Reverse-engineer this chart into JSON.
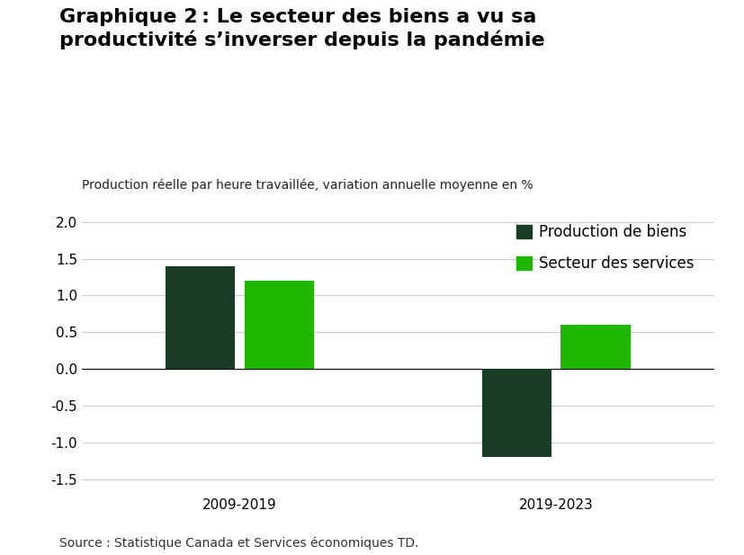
{
  "title": "Graphique 2 : Le secteur des biens a vu sa\nproductivité s’inverser depuis la pandémie",
  "subtitle": "Production réelle par heure travaillée, variation annuelle moyenne en %",
  "categories": [
    "2009-2019",
    "2019-2023"
  ],
  "series": {
    "Production de biens": {
      "values": [
        1.4,
        -1.2
      ],
      "color": "#1a3d28"
    },
    "Secteur des services": {
      "values": [
        1.2,
        0.6
      ],
      "color": "#1eb800"
    }
  },
  "ylim": [
    -1.7,
    2.15
  ],
  "yticks": [
    -1.5,
    -1.0,
    -0.5,
    0.0,
    0.5,
    1.0,
    1.5,
    2.0
  ],
  "bar_width": 0.22,
  "background_color": "#ffffff",
  "grid_color": "#cccccc",
  "source_text": "Source : Statistique Canada et Services économiques TD.",
  "title_fontsize": 16,
  "subtitle_fontsize": 10,
  "tick_fontsize": 11,
  "legend_fontsize": 12,
  "source_fontsize": 10
}
